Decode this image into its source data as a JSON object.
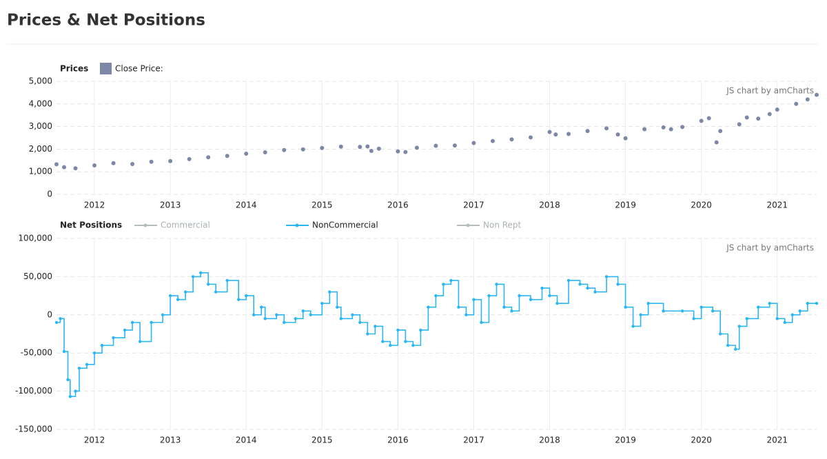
{
  "header": {
    "title": "Prices & Net Positions"
  },
  "chart_data": [
    {
      "type": "scatter",
      "legend_title": "Prices",
      "credit": "JS chart by amCharts",
      "x": [
        2011.5,
        2011.6,
        2011.75,
        2012.0,
        2012.25,
        2012.5,
        2012.75,
        2013.0,
        2013.25,
        2013.5,
        2013.75,
        2014.0,
        2014.25,
        2014.5,
        2014.75,
        2015.0,
        2015.25,
        2015.5,
        2015.6,
        2015.65,
        2015.75,
        2016.0,
        2016.1,
        2016.25,
        2016.5,
        2016.75,
        2017.0,
        2017.25,
        2017.5,
        2017.75,
        2018.0,
        2018.08,
        2018.25,
        2018.5,
        2018.75,
        2018.9,
        2019.0,
        2019.25,
        2019.5,
        2019.6,
        2019.75,
        2020.0,
        2020.1,
        2020.2,
        2020.25,
        2020.5,
        2020.6,
        2020.75,
        2020.9,
        2021.0,
        2021.25,
        2021.4,
        2021.52
      ],
      "series": [
        {
          "name": "Close Price:",
          "color": "#7d88a6",
          "values": [
            1330,
            1200,
            1150,
            1280,
            1380,
            1340,
            1440,
            1470,
            1560,
            1640,
            1700,
            1800,
            1860,
            1960,
            1990,
            2050,
            2110,
            2100,
            2120,
            1920,
            2020,
            1900,
            1870,
            2060,
            2150,
            2160,
            2270,
            2360,
            2430,
            2520,
            2760,
            2650,
            2670,
            2800,
            2920,
            2650,
            2480,
            2880,
            2960,
            2880,
            2980,
            3250,
            3370,
            2300,
            2800,
            3100,
            3400,
            3350,
            3550,
            3750,
            4000,
            4200,
            4400
          ]
        }
      ],
      "xlim": [
        2011.5,
        2021.52
      ],
      "xticks": [
        2012,
        2013,
        2014,
        2015,
        2016,
        2017,
        2018,
        2019,
        2020,
        2021
      ],
      "ylim": [
        0,
        5000
      ],
      "yticks": [
        0,
        {
          "value": 1000,
          "label": "1,000"
        },
        {
          "value": 2000,
          "label": "2,000"
        },
        {
          "value": 3000,
          "label": "3,000"
        },
        {
          "value": 4000,
          "label": "4,000"
        },
        {
          "value": 5000,
          "label": "5,000"
        }
      ],
      "grid": true
    },
    {
      "type": "line",
      "step": true,
      "legend_title": "Net Positions",
      "credit": "JS chart by amCharts",
      "x": [
        2011.5,
        2011.55,
        2011.6,
        2011.65,
        2011.68,
        2011.75,
        2011.8,
        2011.9,
        2012.0,
        2012.1,
        2012.25,
        2012.4,
        2012.5,
        2012.6,
        2012.75,
        2012.9,
        2013.0,
        2013.1,
        2013.2,
        2013.3,
        2013.4,
        2013.5,
        2013.6,
        2013.75,
        2013.9,
        2014.0,
        2014.1,
        2014.2,
        2014.25,
        2014.4,
        2014.5,
        2014.65,
        2014.75,
        2014.85,
        2015.0,
        2015.1,
        2015.2,
        2015.25,
        2015.4,
        2015.5,
        2015.6,
        2015.7,
        2015.8,
        2015.9,
        2016.0,
        2016.1,
        2016.2,
        2016.3,
        2016.4,
        2016.5,
        2016.6,
        2016.7,
        2016.8,
        2016.9,
        2017.0,
        2017.1,
        2017.2,
        2017.3,
        2017.4,
        2017.5,
        2017.6,
        2017.75,
        2017.9,
        2018.0,
        2018.1,
        2018.25,
        2018.4,
        2018.5,
        2018.6,
        2018.75,
        2018.9,
        2019.0,
        2019.1,
        2019.2,
        2019.3,
        2019.5,
        2019.75,
        2019.9,
        2020.0,
        2020.15,
        2020.25,
        2020.35,
        2020.45,
        2020.5,
        2020.6,
        2020.75,
        2020.9,
        2021.0,
        2021.1,
        2021.2,
        2021.3,
        2021.4,
        2021.52
      ],
      "series": [
        {
          "name": "Commercial",
          "color": "#b4bcbc",
          "hidden": true
        },
        {
          "name": "NonCommercial",
          "color": "#29b6f6",
          "values": [
            -10000,
            -5000,
            -48000,
            -85000,
            -107000,
            -100000,
            -70000,
            -65000,
            -50000,
            -40000,
            -30000,
            -20000,
            -10000,
            -35000,
            -10000,
            0,
            25000,
            20000,
            30000,
            50000,
            55000,
            40000,
            30000,
            45000,
            20000,
            25000,
            0,
            10000,
            -5000,
            0,
            -10000,
            -5000,
            5000,
            0,
            15000,
            30000,
            10000,
            -5000,
            0,
            -10000,
            -25000,
            -15000,
            -35000,
            -40000,
            -20000,
            -35000,
            -40000,
            -20000,
            10000,
            25000,
            40000,
            45000,
            10000,
            0,
            20000,
            -10000,
            25000,
            40000,
            10000,
            5000,
            25000,
            20000,
            35000,
            25000,
            15000,
            45000,
            40000,
            35000,
            30000,
            50000,
            40000,
            10000,
            -15000,
            0,
            15000,
            5000,
            5000,
            -5000,
            10000,
            5000,
            -25000,
            -40000,
            -45000,
            -15000,
            -5000,
            10000,
            15000,
            -5000,
            -10000,
            0,
            5000,
            15000,
            15000
          ]
        },
        {
          "name": "Non Rept",
          "color": "#b4bcbc",
          "hidden": true
        }
      ],
      "xlim": [
        2011.5,
        2021.52
      ],
      "xticks": [
        2012,
        2013,
        2014,
        2015,
        2016,
        2017,
        2018,
        2019,
        2020,
        2021
      ],
      "ylim": [
        -150000,
        100000
      ],
      "yticks": [
        {
          "value": -150000,
          "label": "-150,000"
        },
        {
          "value": -100000,
          "label": "-100,000"
        },
        {
          "value": -50000,
          "label": "-50,000"
        },
        0,
        {
          "value": 50000,
          "label": "50,000"
        },
        {
          "value": 100000,
          "label": "100,000"
        }
      ],
      "grid": true
    }
  ]
}
